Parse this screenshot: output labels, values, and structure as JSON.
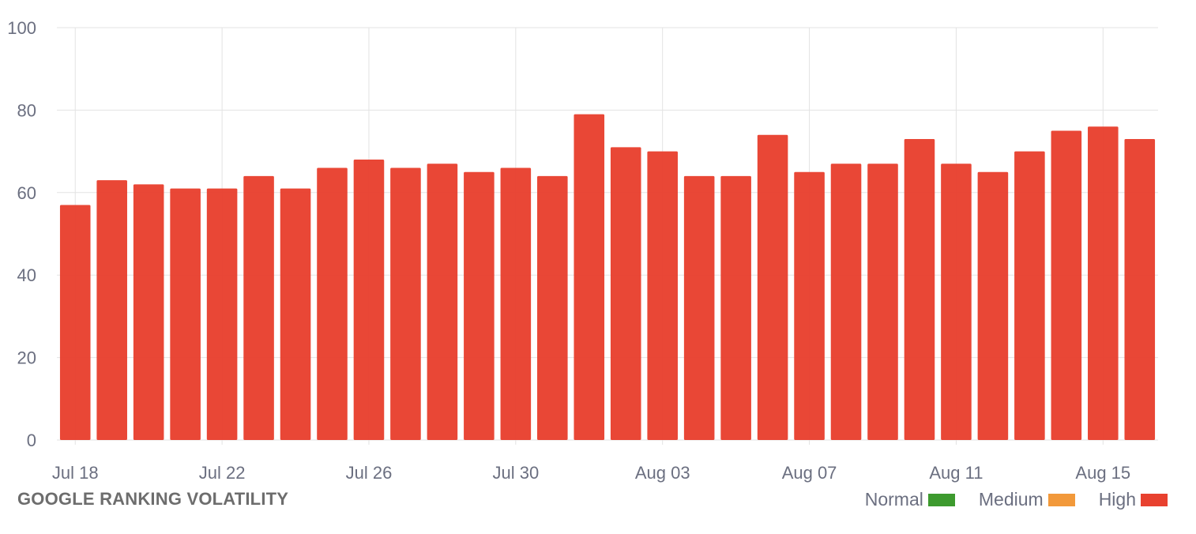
{
  "chart_data": {
    "type": "bar",
    "title": "GOOGLE RANKING VOLATILITY",
    "categories": [
      "Jul 18",
      "Jul 19",
      "Jul 20",
      "Jul 21",
      "Jul 22",
      "Jul 23",
      "Jul 24",
      "Jul 25",
      "Jul 26",
      "Jul 27",
      "Jul 28",
      "Jul 29",
      "Jul 30",
      "Jul 31",
      "Aug 01",
      "Aug 02",
      "Aug 03",
      "Aug 04",
      "Aug 05",
      "Aug 06",
      "Aug 07",
      "Aug 08",
      "Aug 09",
      "Aug 10",
      "Aug 11",
      "Aug 12",
      "Aug 13",
      "Aug 14",
      "Aug 15",
      "Aug 16"
    ],
    "x_tick_labels": [
      "Jul 18",
      "Jul 22",
      "Jul 26",
      "Jul 30",
      "Aug 03",
      "Aug 07",
      "Aug 11",
      "Aug 15"
    ],
    "values": [
      57,
      63,
      62,
      61,
      61,
      64,
      61,
      66,
      68,
      66,
      67,
      65,
      66,
      64,
      79,
      71,
      70,
      64,
      64,
      74,
      65,
      67,
      67,
      73,
      67,
      65,
      70,
      75,
      76,
      73
    ],
    "ylim": [
      0,
      100
    ],
    "y_ticks": [
      0,
      20,
      40,
      60,
      80,
      100
    ],
    "bar_color": "#e8412f",
    "grid": true,
    "legend": {
      "placement": "bottom-right",
      "items": [
        {
          "label": "Normal",
          "color": "#3d9a2e"
        },
        {
          "label": "Medium",
          "color": "#f2993a"
        },
        {
          "label": "High",
          "color": "#e8412f"
        }
      ]
    }
  }
}
